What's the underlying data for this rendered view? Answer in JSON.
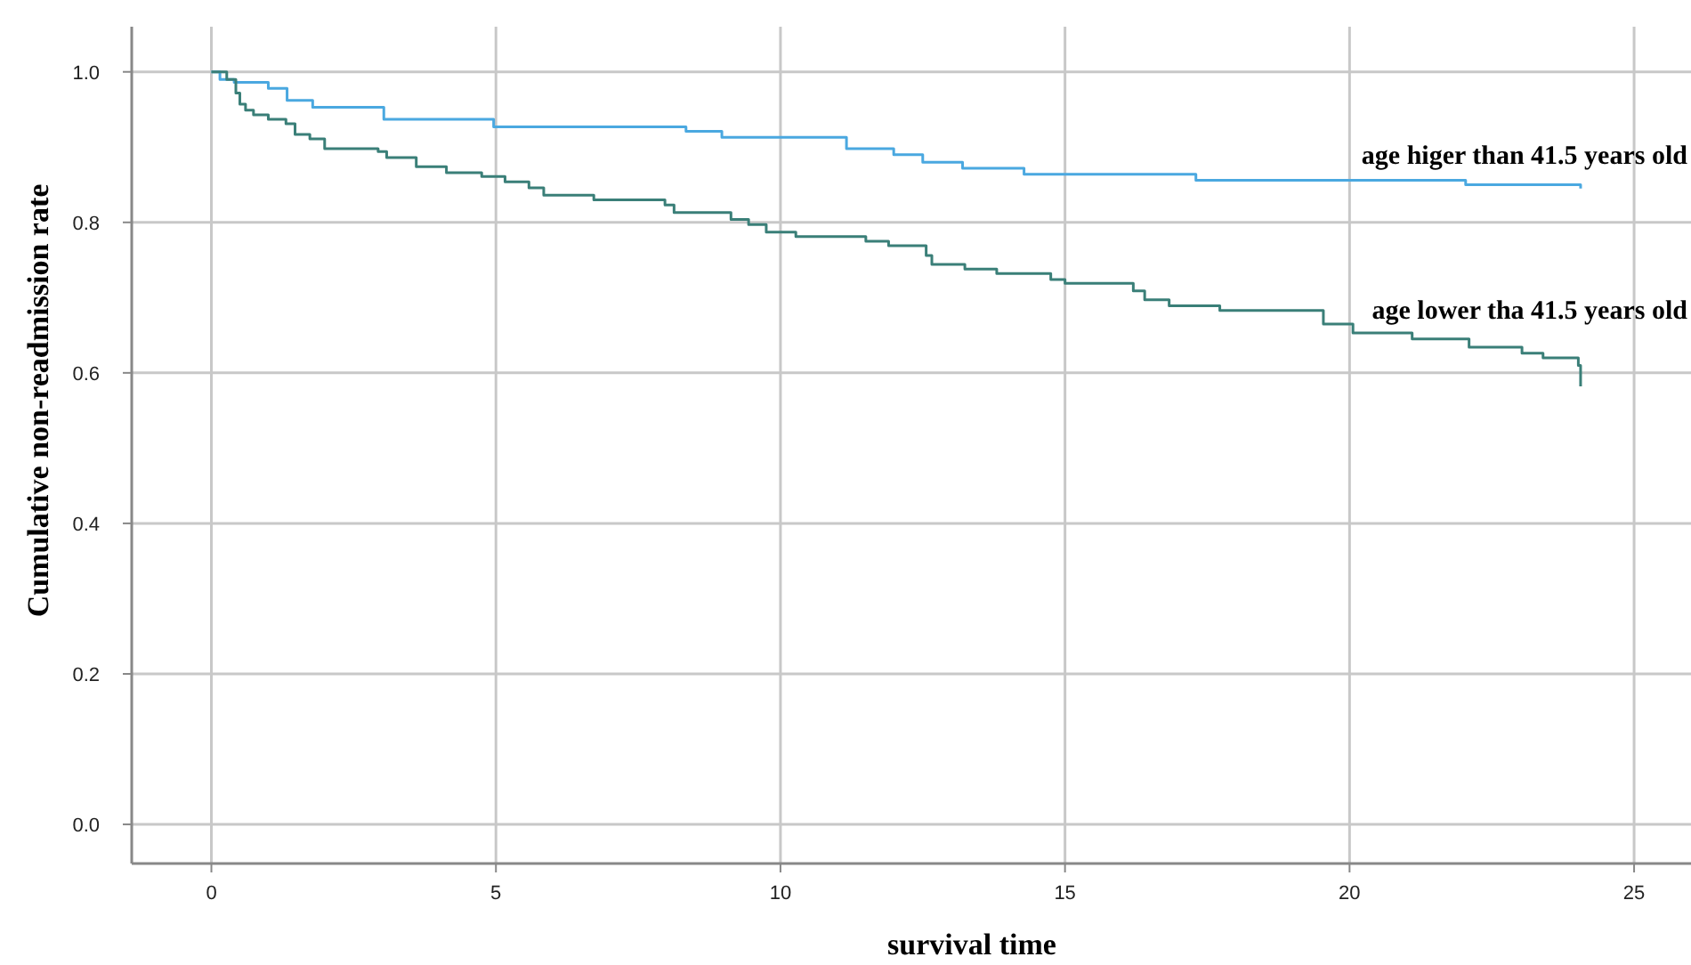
{
  "chart_data": {
    "type": "step",
    "xlabel": "survival time",
    "ylabel": "Cumulative non-readmission rate",
    "xlim": [
      -1.4,
      26
    ],
    "ylim": [
      -0.052,
      1.06
    ],
    "xticks": [
      0,
      5,
      10,
      15,
      20,
      25
    ],
    "yticks": [
      {
        "value": 0,
        "label": "0.0"
      },
      {
        "value": 0.2,
        "label": "0.2"
      },
      {
        "value": 0.4,
        "label": "0.4"
      },
      {
        "value": 0.6,
        "label": "0.6"
      },
      {
        "value": 0.8,
        "label": "0.8"
      },
      {
        "value": 1,
        "label": "1.0"
      }
    ],
    "grid": true,
    "line_style": "solid",
    "marker": "none",
    "series": [
      {
        "name": "age higer than 41.5 years old",
        "color": "#4aa8e0",
        "x": [
          0,
          0.15,
          0.4,
          1.0,
          1.33,
          1.78,
          3.03,
          4.96,
          8.34,
          8.97,
          11.16,
          11.99,
          12.5,
          13.2,
          14.28,
          17.3,
          22.04,
          24.06
        ],
        "values": [
          1.0,
          0.99,
          0.986,
          0.978,
          0.962,
          0.953,
          0.937,
          0.927,
          0.921,
          0.913,
          0.898,
          0.89,
          0.88,
          0.872,
          0.864,
          0.856,
          0.85,
          0.845
        ]
      },
      {
        "name": "age lower tha 41.5 years old",
        "color": "#3a7f78",
        "x": [
          0,
          0.27,
          0.43,
          0.5,
          0.6,
          0.74,
          1.0,
          1.31,
          1.47,
          1.73,
          1.99,
          2.93,
          3.08,
          3.6,
          4.13,
          4.75,
          5.16,
          5.58,
          5.84,
          6.72,
          7.97,
          8.13,
          9.13,
          9.44,
          9.75,
          10.27,
          11.5,
          11.9,
          12.56,
          12.66,
          13.24,
          13.8,
          14.75,
          15.0,
          16.2,
          16.4,
          16.83,
          17.72,
          19.54,
          20.06,
          21.1,
          22.1,
          23.03,
          23.4,
          24.02,
          24.06
        ],
        "values": [
          1.0,
          0.99,
          0.972,
          0.957,
          0.949,
          0.943,
          0.937,
          0.931,
          0.917,
          0.911,
          0.898,
          0.894,
          0.886,
          0.874,
          0.866,
          0.861,
          0.854,
          0.846,
          0.836,
          0.83,
          0.823,
          0.813,
          0.804,
          0.797,
          0.787,
          0.781,
          0.775,
          0.769,
          0.756,
          0.744,
          0.738,
          0.732,
          0.724,
          0.719,
          0.709,
          0.697,
          0.689,
          0.683,
          0.665,
          0.653,
          0.645,
          0.634,
          0.626,
          0.62,
          0.61,
          0.582
        ]
      }
    ]
  }
}
